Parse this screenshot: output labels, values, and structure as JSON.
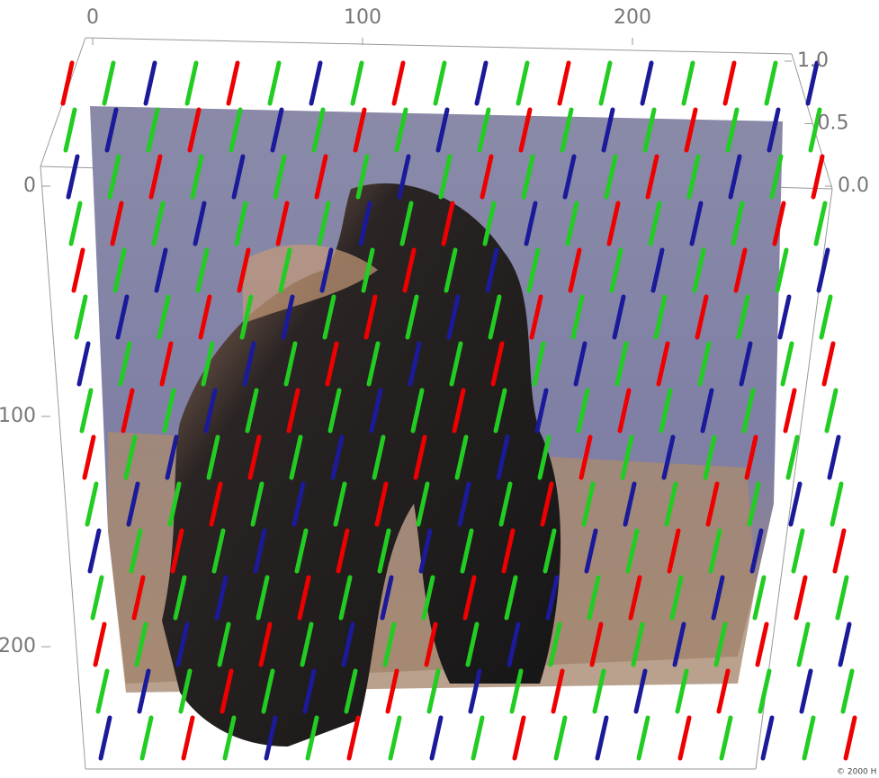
{
  "chart_data": {
    "type": "surface3d",
    "xlim": [
      0,
      250
    ],
    "xticks": [
      0,
      100,
      200
    ],
    "ylim": [
      0,
      250
    ],
    "yticks": [
      0,
      100,
      200
    ],
    "zlim": [
      0,
      1
    ],
    "zticks": [
      {
        "value": 0,
        "label": "0.0"
      },
      {
        "value": 0.5,
        "label": "0.5"
      },
      {
        "value": 1,
        "label": "1.0"
      }
    ],
    "footer": "© 2000 H"
  }
}
